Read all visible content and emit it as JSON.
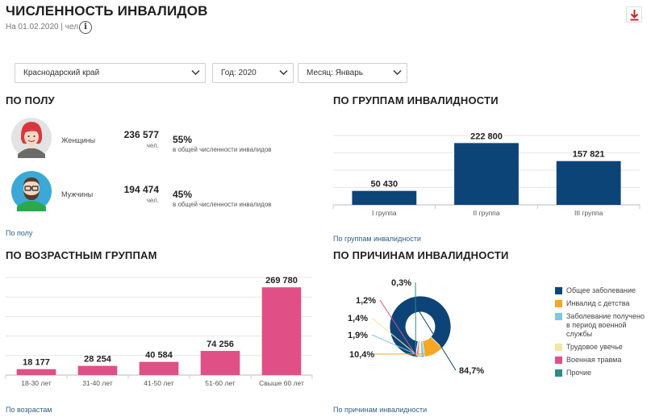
{
  "header": {
    "title": "ЧИСЛЕННОСТЬ ИНВАЛИДОВ",
    "subtitle": "На 01.02.2020 | чел.",
    "info_glyph": "i"
  },
  "filters": {
    "region": "Краснодарский край",
    "year": "Год: 2020",
    "month": "Месяц: Январь"
  },
  "colors": {
    "accent": "#c62828",
    "navy": "#0d4477",
    "pink": "#e14f87",
    "orange": "#f5a623",
    "light_blue": "#7ec8e3",
    "pale_yellow": "#f4e6a0",
    "teal": "#2a8c8c"
  },
  "gender": {
    "title": "ПО ПОЛУ",
    "link": "По полу",
    "items": [
      {
        "label": "Женщины",
        "count": "236 577",
        "unit": "чел.",
        "pct": "55%",
        "desc": "в общей численности инвалидов",
        "icon": "woman-avatar-icon"
      },
      {
        "label": "Мужчины",
        "count": "194 474",
        "unit": "чел.",
        "pct": "45%",
        "desc": "в общей численности инвалидов",
        "icon": "man-avatar-icon"
      }
    ]
  },
  "groups": {
    "title": "ПО ГРУППАМ ИНВАЛИДНОСТИ",
    "link": "По группам инвалидности"
  },
  "ages": {
    "title": "ПО ВОЗРАСТНЫМ ГРУППАМ",
    "link": "По возрастам"
  },
  "causes": {
    "title": "ПО ПРИЧИНАМ ИНВАЛИДНОСТИ",
    "link": "По причинам инвалидности"
  },
  "chart_data": [
    {
      "type": "bar",
      "title": "ПО ГРУППАМ ИНВАЛИДНОСТИ",
      "categories": [
        "I группа",
        "II группа",
        "III группа"
      ],
      "values": [
        50430,
        222800,
        157821
      ],
      "labels": [
        "50 430",
        "222 800",
        "157 821"
      ],
      "ylim": [
        0,
        250000
      ],
      "grid": true,
      "color": "#0d4477"
    },
    {
      "type": "bar",
      "title": "ПО ВОЗРАСТНЫМ ГРУППАМ",
      "categories": [
        "18-30 лет",
        "31-40 лет",
        "41-50 лет",
        "51-60 лет",
        "Свыше 60 лет"
      ],
      "values": [
        18177,
        28254,
        40584,
        74256,
        269780
      ],
      "labels": [
        "18 177",
        "28 254",
        "40 584",
        "74 256",
        "269 780"
      ],
      "ylim": [
        0,
        300000
      ],
      "grid": true,
      "color": "#e14f87"
    },
    {
      "type": "pie",
      "title": "ПО ПРИЧИНАМ ИНВАЛИДНОСТИ",
      "categories": [
        "Общее заболевание",
        "Инвалид с детства",
        "Заболевание получено в период военной службы",
        "Трудовое увечье",
        "Военная травма",
        "Прочие"
      ],
      "values": [
        84.7,
        10.4,
        1.9,
        1.4,
        1.2,
        0.3
      ],
      "labels": [
        "84,7%",
        "10,4%",
        "1,9%",
        "1,4%",
        "1,2%",
        "0,3%"
      ],
      "colors": [
        "#0d4477",
        "#f5a623",
        "#7ec8e3",
        "#f4e6a0",
        "#e14f87",
        "#2a8c8c"
      ],
      "legend": "right"
    }
  ]
}
